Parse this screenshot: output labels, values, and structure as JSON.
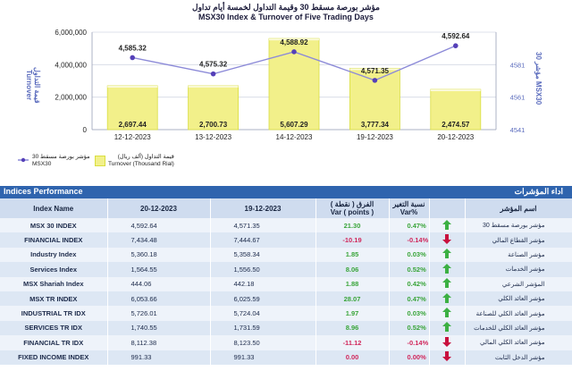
{
  "header": {
    "title_ar": "مؤشر بورصة مسقط 30 وقيمة التداول لخمسة أيام تداول",
    "title_en": "MSX30 Index & Turnover of Five Trading Days"
  },
  "chart_data": {
    "type": "bar+line",
    "categories": [
      "12-12-2023",
      "13-12-2023",
      "14-12-2023",
      "19-12-2023",
      "20-12-2023"
    ],
    "series": [
      {
        "name": "Turnover (Thousand Rial)",
        "type": "bar",
        "axis": "left",
        "values": [
          2697.44,
          2700.73,
          5607.29,
          3777.34,
          2474.57
        ],
        "labels": [
          "2,697.44",
          "2,700.73",
          "5,607.29",
          "3,777.34",
          "2,474.57"
        ]
      },
      {
        "name": "MSX30",
        "type": "line",
        "axis": "right",
        "values": [
          4585.32,
          4575.32,
          4588.92,
          4571.35,
          4592.64
        ],
        "labels": [
          "4,585.32",
          "4,575.32",
          "4,588.92",
          "4,571.35",
          "4,592.64"
        ]
      }
    ],
    "y_left": {
      "ticks": [
        "0",
        "2,000,000",
        "4,000,000",
        "6,000,000"
      ],
      "label": "Turnover",
      "label_ar": "قيمة التداول",
      "min": 0,
      "max": 6000000
    },
    "y_right": {
      "ticks": [
        "4541",
        "4561",
        "4581"
      ],
      "label": "MSX30",
      "label_ar": "مؤشر 30",
      "min": 4541,
      "max": 4601
    },
    "legend": {
      "line_ar": "مؤشر بورصة مسقط 30",
      "line_en": "MSX30",
      "bar_ar": "قيمة التداول (ألف ريال)",
      "bar_en": "Turnover (Thousand Rial)"
    },
    "colors": {
      "bar": "#f2f08a",
      "bar_edge": "#d9de40",
      "line": "#8c8ad8",
      "marker": "#5540b8"
    }
  },
  "table": {
    "title_en": "Indices Performance",
    "title_ar": "اداء المؤشرات",
    "headers": {
      "name": "Index Name",
      "d1": "20-12-2023",
      "d2": "19-12-2023",
      "var_ar": "الفرق ( نقطة )",
      "var_en": "Var ( points )",
      "pct_ar": "نسبة التغير",
      "pct_en": "Var%",
      "ar_name": "اسم المؤشر"
    },
    "rows": [
      {
        "name": "MSX 30 INDEX",
        "d1": "4,592.64",
        "d2": "4,571.35",
        "var": "21.30",
        "pct": "0.47%",
        "dir": "up",
        "ar": "مؤشر بورصة مسقط 30"
      },
      {
        "name": "FINANCIAL INDEX",
        "d1": "7,434.48",
        "d2": "7,444.67",
        "var": "-10.19",
        "pct": "-0.14%",
        "dir": "down",
        "ar": "مؤشر القطاع المالي"
      },
      {
        "name": "Industry Index",
        "d1": "5,360.18",
        "d2": "5,358.34",
        "var": "1.85",
        "pct": "0.03%",
        "dir": "up",
        "ar": "مؤشر الصناعة"
      },
      {
        "name": "Services Index",
        "d1": "1,564.55",
        "d2": "1,556.50",
        "var": "8.06",
        "pct": "0.52%",
        "dir": "up",
        "ar": "مؤشر الخدمات"
      },
      {
        "name": "MSX Shariah Index",
        "d1": "444.06",
        "d2": "442.18",
        "var": "1.88",
        "pct": "0.42%",
        "dir": "up",
        "ar": "المؤشر الشرعي"
      },
      {
        "name": "MSX TR INDEX",
        "d1": "6,053.66",
        "d2": "6,025.59",
        "var": "28.07",
        "pct": "0.47%",
        "dir": "up",
        "ar": "مؤشر العائد الكلي"
      },
      {
        "name": "INDUSTRIAL TR IDX",
        "d1": "5,726.01",
        "d2": "5,724.04",
        "var": "1.97",
        "pct": "0.03%",
        "dir": "up",
        "ar": "مؤشر العائد الكلي للصناعة"
      },
      {
        "name": "SERVICES TR IDX",
        "d1": "1,740.55",
        "d2": "1,731.59",
        "var": "8.96",
        "pct": "0.52%",
        "dir": "up",
        "ar": "مؤشر العائد الكلي للخدمات"
      },
      {
        "name": "FINANCIAL TR IDX",
        "d1": "8,112.38",
        "d2": "8,123.50",
        "var": "-11.12",
        "pct": "-0.14%",
        "dir": "down",
        "ar": "مؤشر العائد الكلي المالي"
      },
      {
        "name": "FIXED INCOME INDEX",
        "d1": "991.33",
        "d2": "991.33",
        "var": "0.00",
        "pct": "0.00%",
        "dir": "down",
        "ar": "مؤشر الدخل الثابت"
      }
    ]
  }
}
